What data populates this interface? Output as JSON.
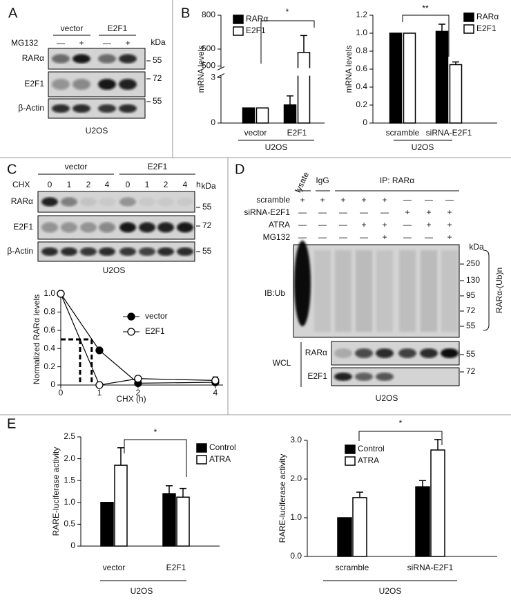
{
  "panel_labels": [
    "A",
    "B",
    "C",
    "D",
    "E"
  ],
  "blot_a": {
    "groups": [
      "vector",
      "E2F1"
    ],
    "treatment": "MG132",
    "signs": [
      "—",
      "+",
      "—",
      "+"
    ],
    "rows": [
      "RARα",
      "E2F1",
      "β-Actin"
    ],
    "kda": "kDa",
    "markers": [
      55,
      72,
      55
    ],
    "cell_line": "U2OS"
  },
  "blot_c": {
    "groups": [
      "vector",
      "E2F1"
    ],
    "treatment": "CHX",
    "times": [
      0,
      1,
      2,
      4,
      0,
      1,
      2,
      4
    ],
    "time_unit": "h",
    "rows": [
      "RARα",
      "E2F1",
      "β-Actin"
    ],
    "kda": "kDa",
    "markers": [
      55,
      72,
      55
    ],
    "cell_line": "U2OS"
  },
  "blot_d": {
    "lane_headers": [
      "lysate",
      "IgG",
      "IP: RARα"
    ],
    "conditions": [
      {
        "name": "scramble",
        "signs": [
          "+",
          "+",
          "+",
          "+",
          "+",
          "—",
          "—",
          "—"
        ]
      },
      {
        "name": "siRNA-E2F1",
        "signs": [
          "—",
          "—",
          "—",
          "—",
          "—",
          "+",
          "+",
          "+"
        ]
      },
      {
        "name": "ATRA",
        "signs": [
          "—",
          "—",
          "—",
          "+",
          "+",
          "—",
          "+",
          "+"
        ]
      },
      {
        "name": "MG132",
        "signs": [
          "—",
          "—",
          "—",
          "—",
          "+",
          "—",
          "—",
          "+"
        ]
      }
    ],
    "ib_label": "IB:Ub",
    "kda": "kDa",
    "ub_markers": [
      250,
      130,
      95,
      72,
      55
    ],
    "ub_label": "RARα-(Ub)n",
    "wcl_label": "WCL",
    "wcl_rows": [
      "RARα",
      "E2F1"
    ],
    "wcl_markers": [
      55,
      72
    ],
    "cell_line": "U2OS"
  },
  "chart_data": [
    {
      "type": "bar",
      "y_label": "mRNA levels",
      "categories": [
        "vector",
        "E2F1"
      ],
      "group_label": "U2OS",
      "series": [
        {
          "name": "RARα",
          "color": "#000000",
          "values": [
            1,
            1.2
          ],
          "errors": [
            null,
            0.6
          ]
        },
        {
          "name": "E2F1",
          "color": "#ffffff",
          "values": [
            1,
            580
          ],
          "errors": [
            null,
            100
          ]
        }
      ],
      "ylim": [
        0,
        800
      ],
      "axis_break": [
        3,
        500
      ],
      "yticks": [
        0,
        3,
        500,
        600,
        800
      ],
      "significance": "*"
    },
    {
      "type": "bar",
      "y_label": "mRNA levels",
      "categories": [
        "scramble",
        "siRNA-E2F1"
      ],
      "group_label": "U2OS",
      "series": [
        {
          "name": "RARα",
          "color": "#000000",
          "values": [
            1,
            1.02
          ],
          "errors": [
            null,
            0.08
          ]
        },
        {
          "name": "E2F1",
          "color": "#ffffff",
          "values": [
            1,
            0.65
          ],
          "errors": [
            null,
            0.03
          ]
        }
      ],
      "ylim": [
        0,
        1.2
      ],
      "yticks": [
        0,
        0.2,
        0.4,
        0.6,
        0.8,
        {
          "value": 1,
          "label": "1.0"
        },
        1.2
      ],
      "significance": "**"
    },
    {
      "type": "line",
      "y_label": "Normalized RARα levels",
      "x_label": "CHX (h)",
      "x": [
        0,
        1,
        2,
        4
      ],
      "series": [
        {
          "name": "vector",
          "color": "#000000",
          "values": [
            1,
            0.38,
            0.02,
            0.03
          ],
          "errors": [
            null,
            null,
            null,
            null
          ]
        },
        {
          "name": "E2F1",
          "color": "#ffffff",
          "values": [
            1,
            0,
            0.07,
            0.05
          ],
          "errors": [
            null,
            null,
            null,
            0.04
          ]
        }
      ],
      "xlim": [
        0,
        4.2
      ],
      "xticks": [
        0,
        1,
        2,
        4
      ],
      "ylim": [
        0,
        1
      ],
      "yticks": [
        0,
        0.2,
        0.4,
        0.6,
        0.8,
        {
          "value": 1,
          "label": "1.0"
        }
      ],
      "half_life_lines": {
        "y": 0.5,
        "x": [
          0.5,
          0.8
        ]
      }
    },
    {
      "type": "bar",
      "y_label": "RARE-luciferase activity",
      "categories": [
        "vector",
        "E2F1"
      ],
      "group_label": "U2OS",
      "series": [
        {
          "name": "Control",
          "color": "#000000",
          "values": [
            1,
            1.2
          ],
          "errors": [
            null,
            0.18
          ]
        },
        {
          "name": "ATRA",
          "color": "#ffffff",
          "values": [
            1.85,
            1.12
          ],
          "errors": [
            0.4,
            0.2
          ]
        }
      ],
      "ylim": [
        0,
        2.5
      ],
      "yticks": [
        0,
        0.5,
        {
          "value": 1,
          "label": "1.0"
        },
        1.5,
        {
          "value": 2,
          "label": "2.0"
        },
        2.5
      ],
      "significance": "*"
    },
    {
      "type": "bar",
      "y_label": "RARE-luciferase activity",
      "categories": [
        "scramble",
        "siRNA-E2F1"
      ],
      "group_label": "U2OS",
      "series": [
        {
          "name": "Control",
          "color": "#000000",
          "values": [
            1,
            1.8
          ],
          "errors": [
            null,
            0.16
          ]
        },
        {
          "name": "ATRA",
          "color": "#ffffff",
          "values": [
            1.52,
            2.75
          ],
          "errors": [
            0.14,
            0.27
          ]
        }
      ],
      "ylim": [
        0,
        3
      ],
      "yticks": [
        {
          "value": 0,
          "label": "0.0"
        },
        {
          "value": 1,
          "label": "1.0"
        },
        {
          "value": 2,
          "label": "2.0"
        },
        {
          "value": 3,
          "label": "3.0"
        }
      ],
      "significance": "*"
    }
  ]
}
